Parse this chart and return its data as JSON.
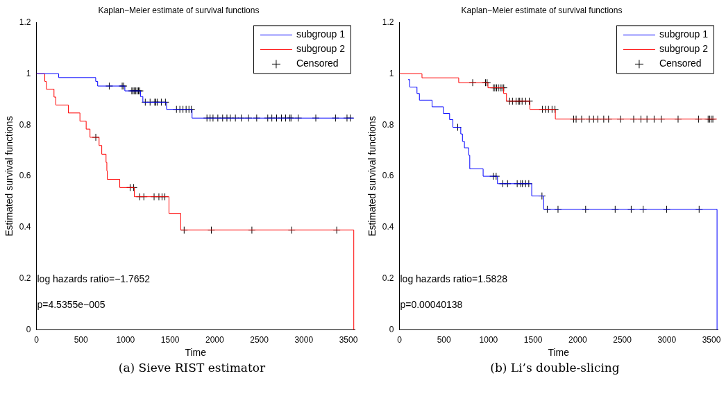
{
  "chart_data": [
    {
      "type": "step",
      "title": "Kaplan−Meier estimate of survival functions",
      "xlabel": "Time",
      "ylabel": "Estimated survival functions",
      "xlim": [
        0,
        3570
      ],
      "xticks": [
        0,
        500,
        1000,
        1500,
        2000,
        2500,
        3000,
        3500
      ],
      "ylim": [
        0,
        1.2
      ],
      "yticks": [
        0,
        0.2,
        0.4,
        0.6,
        0.8,
        1,
        1.2
      ],
      "legend": "top right",
      "grid": false,
      "annotations": [
        "log hazards ratio=−1.7652",
        "p=4.5355e−005",
        "(a) Sieve RIST estimator"
      ],
      "series": [
        {
          "name": "subgroup 1",
          "color": "#0000ff",
          "x": [
            0,
            250,
            665,
            687,
            992,
            1167,
            1194,
            1460,
            1746,
            3560
          ],
          "values": [
            1,
            0.985,
            0.97,
            0.952,
            0.933,
            0.911,
            0.889,
            0.861,
            0.827,
            0.827
          ]
        },
        {
          "name": "subgroup 2",
          "color": "#ff0000",
          "x": [
            0,
            94,
            111,
            197,
            218,
            358,
            488,
            558,
            601,
            703,
            733,
            781,
            790,
            795,
            935,
            1099,
            1487,
            1619,
            3560,
            3560
          ],
          "values": [
            1,
            0.97,
            0.94,
            0.909,
            0.878,
            0.847,
            0.815,
            0.784,
            0.752,
            0.72,
            0.686,
            0.654,
            0.621,
            0.588,
            0.556,
            0.52,
            0.455,
            0.39,
            0.39,
            0
          ]
        },
        {
          "name": "Censored",
          "color": "#000000",
          "type": "scatter",
          "marker": "cross",
          "x": [
            817,
            962,
            978,
            1070,
            1085,
            1100,
            1115,
            1130,
            1145,
            1160,
            1221,
            1275,
            1328,
            1340,
            1356,
            1401,
            1447,
            1571,
            1609,
            1644,
            1679,
            1711,
            1738,
            1913,
            1948,
            1981,
            2035,
            2089,
            2137,
            2175,
            2232,
            2298,
            2379,
            2471,
            2595,
            2641,
            2694,
            2749,
            2795,
            2843,
            2856,
            2937,
            3134,
            3355,
            3484,
            3520,
            666,
            1051,
            1091,
            1159,
            1205,
            1320,
            1374,
            1409,
            1441,
            1657,
            1962,
            2417,
            2864,
            3369
          ],
          "values": [
            0.952,
            0.952,
            0.952,
            0.933,
            0.933,
            0.933,
            0.933,
            0.933,
            0.933,
            0.933,
            0.889,
            0.889,
            0.889,
            0.889,
            0.889,
            0.889,
            0.889,
            0.861,
            0.861,
            0.861,
            0.861,
            0.861,
            0.861,
            0.827,
            0.827,
            0.827,
            0.827,
            0.827,
            0.827,
            0.827,
            0.827,
            0.827,
            0.827,
            0.827,
            0.827,
            0.827,
            0.827,
            0.827,
            0.827,
            0.827,
            0.827,
            0.827,
            0.827,
            0.827,
            0.827,
            0.827,
            0.752,
            0.556,
            0.556,
            0.52,
            0.52,
            0.52,
            0.52,
            0.52,
            0.52,
            0.39,
            0.39,
            0.39,
            0.39,
            0.39
          ]
        }
      ]
    },
    {
      "type": "step",
      "title": "Kaplan−Meier estimate of survival functions",
      "xlabel": "Time",
      "ylabel": "Estimated survival functions",
      "xlim": [
        0,
        3570
      ],
      "xticks": [
        0,
        500,
        1000,
        1500,
        2000,
        2500,
        3000,
        3500
      ],
      "ylim": [
        0,
        1.2
      ],
      "yticks": [
        0,
        0.2,
        0.4,
        0.6,
        0.8,
        1,
        1.2
      ],
      "legend": "top right",
      "grid": false,
      "annotations": [
        "log hazards ratio=1.5828",
        "p=0.00040138",
        "(b) Li’s double-slicing"
      ],
      "series": [
        {
          "name": "subgroup 1",
          "color": "#0000ff",
          "x": [
            97,
            116,
            197,
            224,
            366,
            493,
            563,
            600,
            688,
            707,
            729,
            777,
            789,
            939,
            1100,
            1484,
            1618,
            3563,
            3563
          ],
          "values": [
            0.977,
            0.948,
            0.923,
            0.897,
            0.871,
            0.845,
            0.821,
            0.791,
            0.765,
            0.736,
            0.711,
            0.682,
            0.629,
            0.6,
            0.571,
            0.523,
            0.471,
            0.471,
            0
          ]
        },
        {
          "name": "subgroup 2",
          "color": "#ff0000",
          "x": [
            0,
            253,
            665,
            993,
            1169,
            1201,
            1464,
            1749,
            3560
          ],
          "values": [
            1,
            0.984,
            0.965,
            0.945,
            0.923,
            0.893,
            0.861,
            0.823,
            0.823
          ]
        },
        {
          "name": "Censored",
          "color": "#000000",
          "type": "scatter",
          "marker": "cross",
          "x": [
            822,
            966,
            984,
            1052,
            1070,
            1090,
            1110,
            1130,
            1150,
            1170,
            1236,
            1268,
            1309,
            1336,
            1349,
            1376,
            1416,
            1456,
            1605,
            1637,
            1672,
            1712,
            1745,
            1955,
            1982,
            2044,
            2130,
            2179,
            2225,
            2292,
            2346,
            2480,
            2628,
            2709,
            2777,
            2857,
            2938,
            3126,
            3355,
            3463,
            3481,
            3497,
            3516,
            654,
            1052,
            1085,
            1160,
            1213,
            1321,
            1362,
            1380,
            1415,
            1451,
            1599,
            1658,
            1779,
            2089,
            2420,
            2600,
            2734,
            2998,
            3362
          ],
          "values": [
            0.965,
            0.965,
            0.965,
            0.945,
            0.945,
            0.945,
            0.945,
            0.945,
            0.945,
            0.945,
            0.893,
            0.893,
            0.893,
            0.893,
            0.893,
            0.893,
            0.893,
            0.893,
            0.861,
            0.861,
            0.861,
            0.861,
            0.861,
            0.823,
            0.823,
            0.823,
            0.823,
            0.823,
            0.823,
            0.823,
            0.823,
            0.823,
            0.823,
            0.823,
            0.823,
            0.823,
            0.823,
            0.823,
            0.823,
            0.823,
            0.823,
            0.823,
            0.823,
            0.791,
            0.6,
            0.6,
            0.571,
            0.571,
            0.571,
            0.571,
            0.571,
            0.571,
            0.571,
            0.523,
            0.471,
            0.471,
            0.471,
            0.471,
            0.471,
            0.471,
            0.471,
            0.471
          ]
        }
      ]
    }
  ]
}
